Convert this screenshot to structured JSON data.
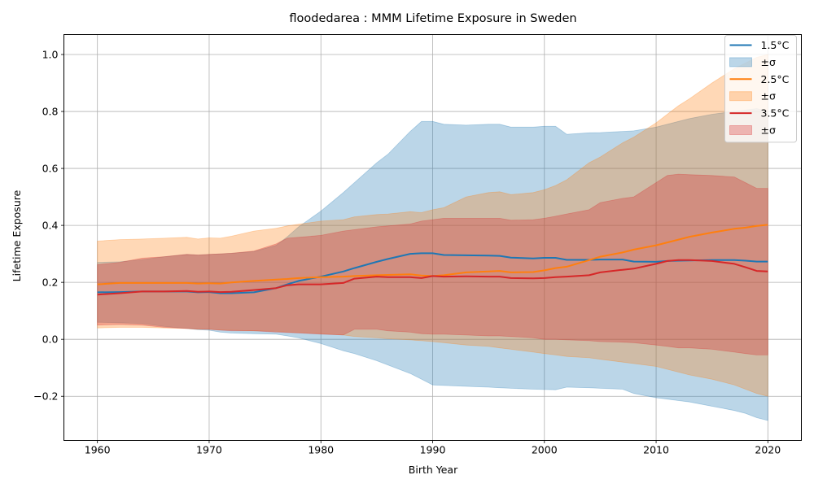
{
  "chart_data": {
    "type": "line",
    "title": "floodedarea : MMM Lifetime Exposure in Sweden",
    "xlabel": "Birth Year",
    "ylabel": "Lifetime Exposure",
    "xlim": [
      1957,
      2023
    ],
    "ylim": [
      -0.355,
      1.07
    ],
    "xticks": [
      1960,
      1970,
      1980,
      1990,
      2000,
      2010,
      2020
    ],
    "yticks": [
      -0.2,
      0.0,
      0.2,
      0.4,
      0.6,
      0.8,
      1.0
    ],
    "ytick_labels": [
      "−0.2",
      "0.0",
      "0.2",
      "0.4",
      "0.6",
      "0.8",
      "1.0"
    ],
    "grid": true,
    "legend_position": "top-right",
    "x": [
      1960,
      1962,
      1964,
      1966,
      1968,
      1969,
      1970,
      1971,
      1972,
      1974,
      1976,
      1977,
      1978,
      1980,
      1982,
      1983,
      1985,
      1986,
      1988,
      1989,
      1990,
      1991,
      1993,
      1995,
      1996,
      1997,
      1999,
      2000,
      2001,
      2002,
      2004,
      2005,
      2007,
      2008,
      2010,
      2011,
      2012,
      2013,
      2015,
      2017,
      2018,
      2019,
      2020
    ],
    "series": [
      {
        "name": "1.5°C",
        "band_label": "±σ",
        "color": "#1f77b4",
        "mean": [
          0.165,
          0.166,
          0.168,
          0.168,
          0.168,
          0.165,
          0.166,
          0.162,
          0.162,
          0.165,
          0.18,
          0.193,
          0.205,
          0.22,
          0.238,
          0.25,
          0.272,
          0.282,
          0.3,
          0.302,
          0.302,
          0.296,
          0.295,
          0.294,
          0.293,
          0.287,
          0.284,
          0.286,
          0.286,
          0.279,
          0.279,
          0.28,
          0.28,
          0.273,
          0.272,
          0.275,
          0.276,
          0.277,
          0.278,
          0.278,
          0.276,
          0.273,
          0.273
        ],
        "upper": [
          0.27,
          0.272,
          0.28,
          0.29,
          0.298,
          0.296,
          0.298,
          0.3,
          0.302,
          0.308,
          0.33,
          0.36,
          0.395,
          0.45,
          0.515,
          0.55,
          0.62,
          0.65,
          0.73,
          0.765,
          0.765,
          0.755,
          0.752,
          0.755,
          0.755,
          0.745,
          0.745,
          0.748,
          0.748,
          0.72,
          0.725,
          0.726,
          0.73,
          0.732,
          0.745,
          0.755,
          0.765,
          0.775,
          0.79,
          0.8,
          0.805,
          0.81,
          0.8
        ],
        "lower": [
          0.06,
          0.058,
          0.055,
          0.045,
          0.038,
          0.034,
          0.032,
          0.025,
          0.022,
          0.02,
          0.018,
          0.012,
          0.005,
          -0.015,
          -0.04,
          -0.05,
          -0.075,
          -0.09,
          -0.12,
          -0.14,
          -0.16,
          -0.162,
          -0.165,
          -0.168,
          -0.17,
          -0.172,
          -0.175,
          -0.176,
          -0.177,
          -0.168,
          -0.17,
          -0.172,
          -0.175,
          -0.19,
          -0.205,
          -0.21,
          -0.215,
          -0.22,
          -0.235,
          -0.25,
          -0.26,
          -0.275,
          -0.285
        ]
      },
      {
        "name": "2.5°C",
        "band_label": "±σ",
        "color": "#ff7f0e",
        "mean": [
          0.193,
          0.198,
          0.198,
          0.198,
          0.198,
          0.196,
          0.197,
          0.196,
          0.2,
          0.205,
          0.21,
          0.212,
          0.215,
          0.218,
          0.22,
          0.222,
          0.225,
          0.226,
          0.228,
          0.224,
          0.222,
          0.225,
          0.235,
          0.238,
          0.24,
          0.235,
          0.236,
          0.242,
          0.25,
          0.255,
          0.278,
          0.29,
          0.305,
          0.315,
          0.33,
          0.34,
          0.35,
          0.36,
          0.375,
          0.388,
          0.392,
          0.398,
          0.402
        ],
        "upper": [
          0.345,
          0.35,
          0.352,
          0.355,
          0.358,
          0.352,
          0.356,
          0.355,
          0.362,
          0.38,
          0.39,
          0.398,
          0.404,
          0.415,
          0.42,
          0.43,
          0.438,
          0.44,
          0.448,
          0.445,
          0.455,
          0.462,
          0.5,
          0.515,
          0.518,
          0.508,
          0.515,
          0.525,
          0.54,
          0.56,
          0.62,
          0.64,
          0.69,
          0.71,
          0.76,
          0.79,
          0.82,
          0.845,
          0.9,
          0.95,
          0.97,
          0.99,
          1.0
        ],
        "lower": [
          0.04,
          0.042,
          0.042,
          0.04,
          0.038,
          0.035,
          0.035,
          0.033,
          0.032,
          0.03,
          0.028,
          0.025,
          0.024,
          0.02,
          0.015,
          0.01,
          0.005,
          0.002,
          -0.002,
          -0.005,
          -0.008,
          -0.012,
          -0.02,
          -0.025,
          -0.03,
          -0.035,
          -0.045,
          -0.05,
          -0.055,
          -0.06,
          -0.065,
          -0.07,
          -0.08,
          -0.085,
          -0.095,
          -0.105,
          -0.115,
          -0.125,
          -0.14,
          -0.16,
          -0.175,
          -0.19,
          -0.2
        ]
      },
      {
        "name": "3.5°C",
        "band_label": "±σ",
        "color": "#d62728",
        "mean": [
          0.157,
          0.162,
          0.168,
          0.168,
          0.17,
          0.167,
          0.168,
          0.166,
          0.167,
          0.173,
          0.18,
          0.19,
          0.193,
          0.193,
          0.198,
          0.213,
          0.22,
          0.218,
          0.218,
          0.215,
          0.222,
          0.22,
          0.221,
          0.22,
          0.22,
          0.215,
          0.214,
          0.215,
          0.218,
          0.22,
          0.225,
          0.235,
          0.244,
          0.248,
          0.265,
          0.275,
          0.278,
          0.278,
          0.275,
          0.265,
          0.253,
          0.24,
          0.238
        ],
        "upper": [
          0.262,
          0.27,
          0.285,
          0.29,
          0.298,
          0.296,
          0.298,
          0.3,
          0.302,
          0.31,
          0.335,
          0.355,
          0.358,
          0.365,
          0.38,
          0.385,
          0.395,
          0.398,
          0.405,
          0.415,
          0.42,
          0.425,
          0.425,
          0.425,
          0.425,
          0.418,
          0.42,
          0.425,
          0.432,
          0.44,
          0.455,
          0.48,
          0.495,
          0.5,
          0.55,
          0.575,
          0.58,
          0.578,
          0.575,
          0.57,
          0.55,
          0.53,
          0.53
        ],
        "lower": [
          0.05,
          0.052,
          0.05,
          0.042,
          0.038,
          0.036,
          0.035,
          0.032,
          0.03,
          0.03,
          0.025,
          0.024,
          0.022,
          0.018,
          0.015,
          0.035,
          0.035,
          0.03,
          0.025,
          0.02,
          0.018,
          0.018,
          0.015,
          0.012,
          0.012,
          0.01,
          0.005,
          0.0,
          0.0,
          -0.002,
          -0.005,
          -0.008,
          -0.01,
          -0.012,
          -0.02,
          -0.025,
          -0.03,
          -0.03,
          -0.035,
          -0.045,
          -0.05,
          -0.055,
          -0.055
        ]
      }
    ]
  }
}
